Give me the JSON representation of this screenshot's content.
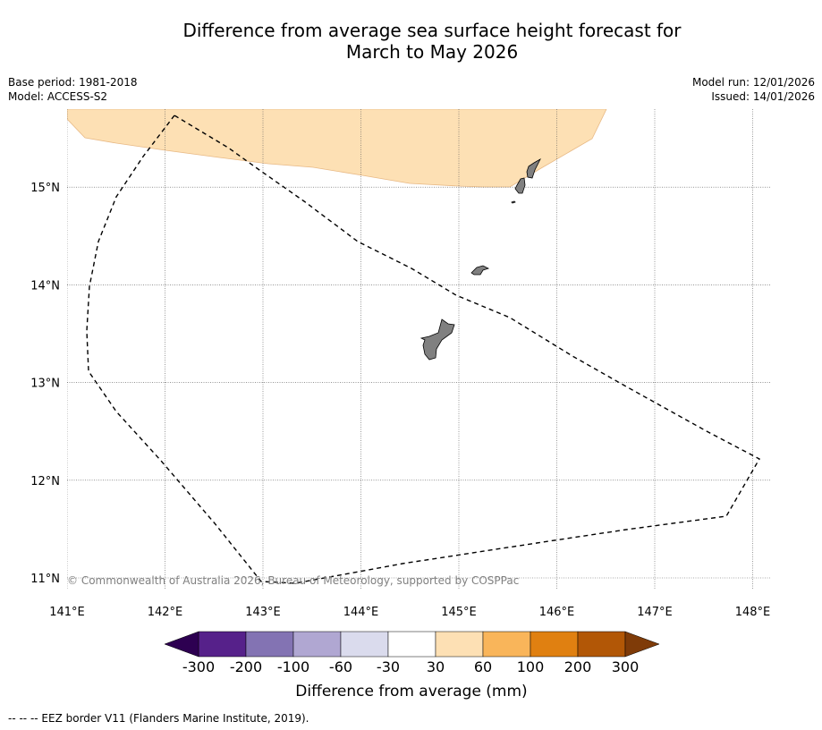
{
  "title": {
    "line1": "Difference from average sea surface height forecast for",
    "line2": "March to May 2026"
  },
  "meta": {
    "base_period": "Base period: 1981-2018",
    "model": "Model: ACCESS-S2",
    "model_run": "Model run: 12/01/2026",
    "issued": "Issued: 14/01/2026"
  },
  "map": {
    "lon_range": [
      141,
      148.2
    ],
    "lat_range": [
      10.85,
      15.8
    ],
    "lon_ticks": [
      141,
      142,
      143,
      144,
      145,
      146,
      147,
      148
    ],
    "lon_tick_labels": [
      "141°E",
      "142°E",
      "143°E",
      "144°E",
      "145°E",
      "146°E",
      "147°E",
      "148°E"
    ],
    "lat_ticks": [
      11,
      12,
      13,
      14,
      15
    ],
    "lat_tick_labels": [
      "11°N",
      "12°N",
      "13°N",
      "14°N",
      "15°N"
    ],
    "anomaly_fill_color": "#fde0b4",
    "land_color": "#808080",
    "copyright": "© Commonwealth of Australia 2026, Bureau of Meteorology, supported by COSPPac"
  },
  "colorbar": {
    "title": "Difference from average (mm)",
    "tick_labels": [
      "-300",
      "-200",
      "-100",
      "-60",
      "-30",
      "30",
      "60",
      "100",
      "200",
      "300"
    ],
    "colors": [
      "#56218a",
      "#8373b3",
      "#b0a7d2",
      "#dadbed",
      "#ffffff",
      "#fde0b4",
      "#f9b55a",
      "#e08011",
      "#b25706"
    ],
    "under_color": "#2d0051",
    "over_color": "#7f3b08"
  },
  "footnote": "--  --  -- EEZ border V11 (Flanders Marine Institute, 2019)."
}
